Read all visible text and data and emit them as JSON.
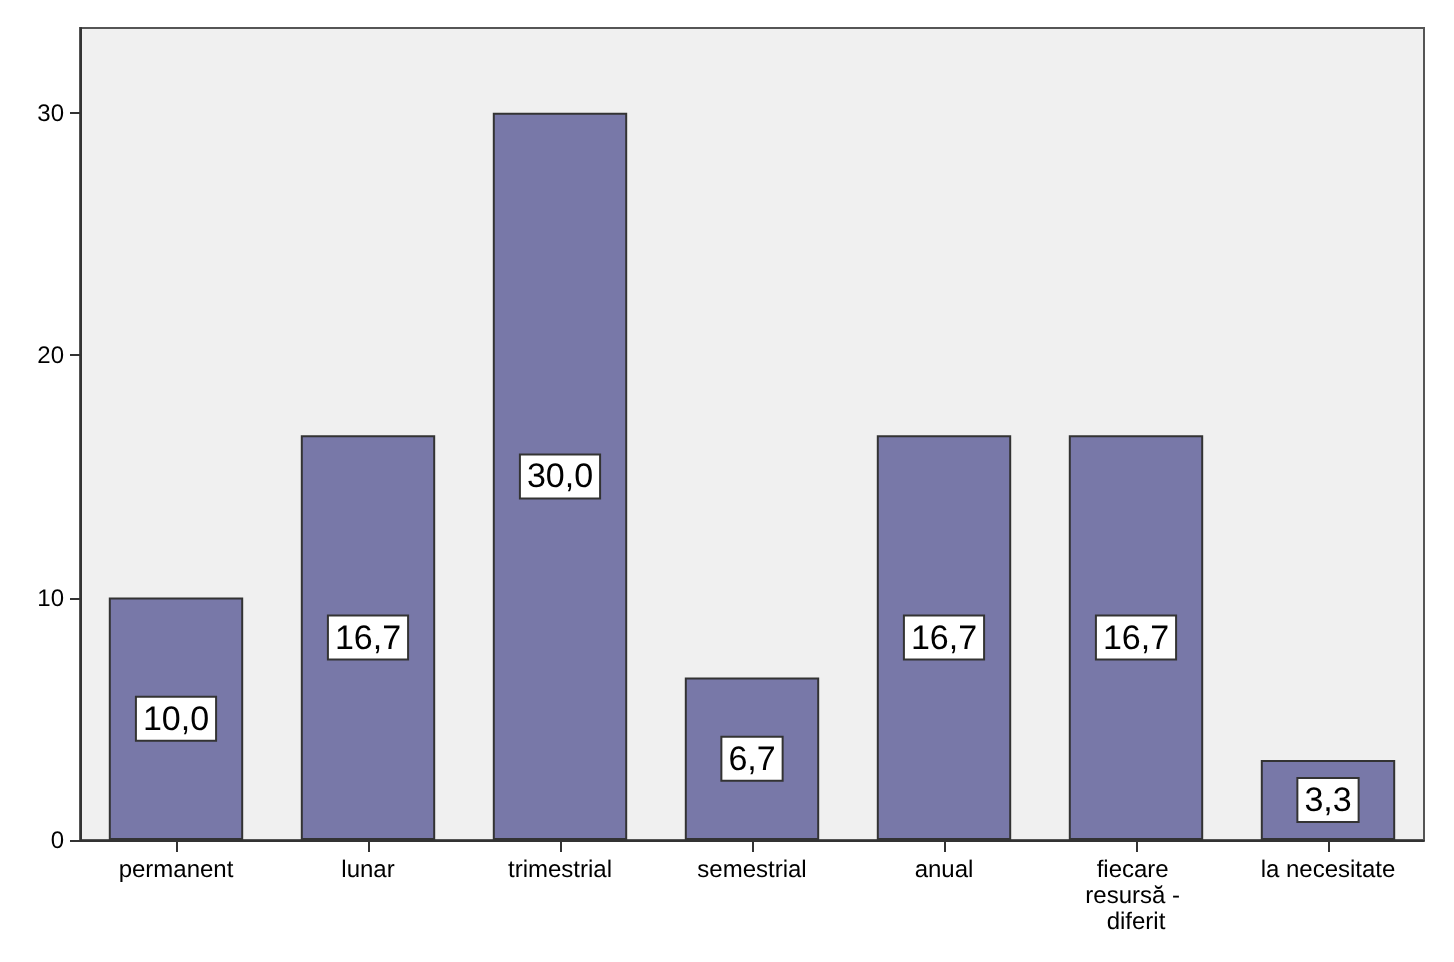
{
  "chart_data": {
    "type": "bar",
    "categories": [
      "permanent",
      "lunar",
      "trimestrial",
      "semestrial",
      "anual",
      "fiecare resursă - diferit",
      "la necesitate"
    ],
    "values": [
      10.0,
      16.7,
      30.0,
      6.7,
      16.7,
      16.7,
      3.3
    ],
    "value_labels": [
      "10,0",
      "16,7",
      "30,0",
      "6,7",
      "16,7",
      "16,7",
      "3,3"
    ],
    "color": "#7878a8",
    "ylim": [
      0,
      33.5
    ],
    "yticks": [
      0,
      10,
      20,
      30
    ],
    "grid": false
  }
}
